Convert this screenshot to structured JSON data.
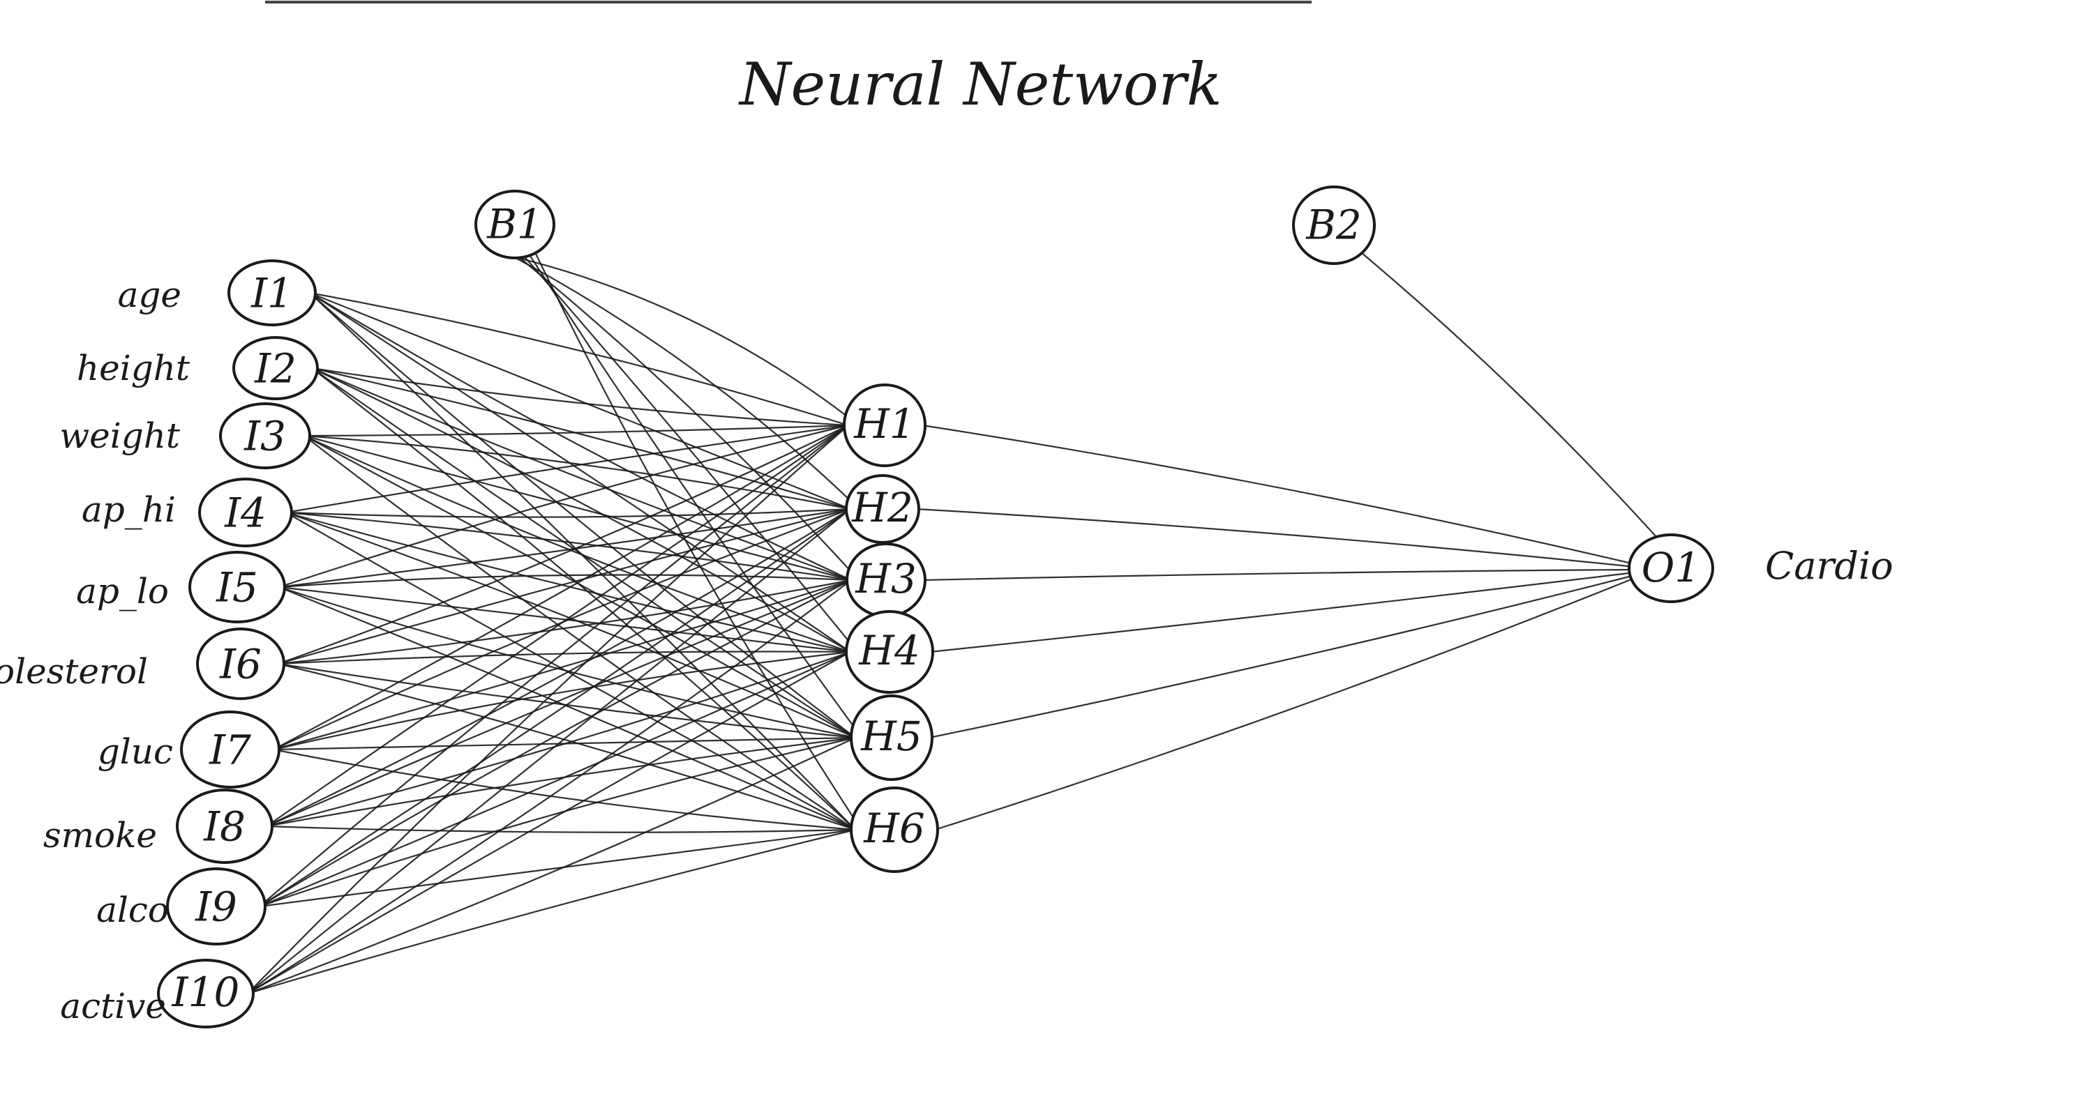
{
  "title": "Neural Network",
  "inputs": [
    {
      "id": "I1",
      "label": "age"
    },
    {
      "id": "I2",
      "label": "height"
    },
    {
      "id": "I3",
      "label": "weight"
    },
    {
      "id": "I4",
      "label": "ap_hi"
    },
    {
      "id": "I5",
      "label": "ap_lo"
    },
    {
      "id": "I6",
      "label": "cholesterol"
    },
    {
      "id": "I7",
      "label": "gluc"
    },
    {
      "id": "I8",
      "label": "smoke"
    },
    {
      "id": "I9",
      "label": "alco"
    },
    {
      "id": "I10",
      "label": "active"
    }
  ],
  "bias_hidden": {
    "id": "B1"
  },
  "hidden": [
    {
      "id": "H1"
    },
    {
      "id": "H2"
    },
    {
      "id": "H3"
    },
    {
      "id": "H4"
    },
    {
      "id": "H5"
    },
    {
      "id": "H6"
    }
  ],
  "bias_output": {
    "id": "B2"
  },
  "output": {
    "id": "O1",
    "label": "Cardio"
  },
  "connections": {
    "input_to_hidden": "fully-connected",
    "bias_to_hidden": "fully-connected",
    "hidden_to_output": "fully-connected",
    "bias_to_output": "single"
  }
}
